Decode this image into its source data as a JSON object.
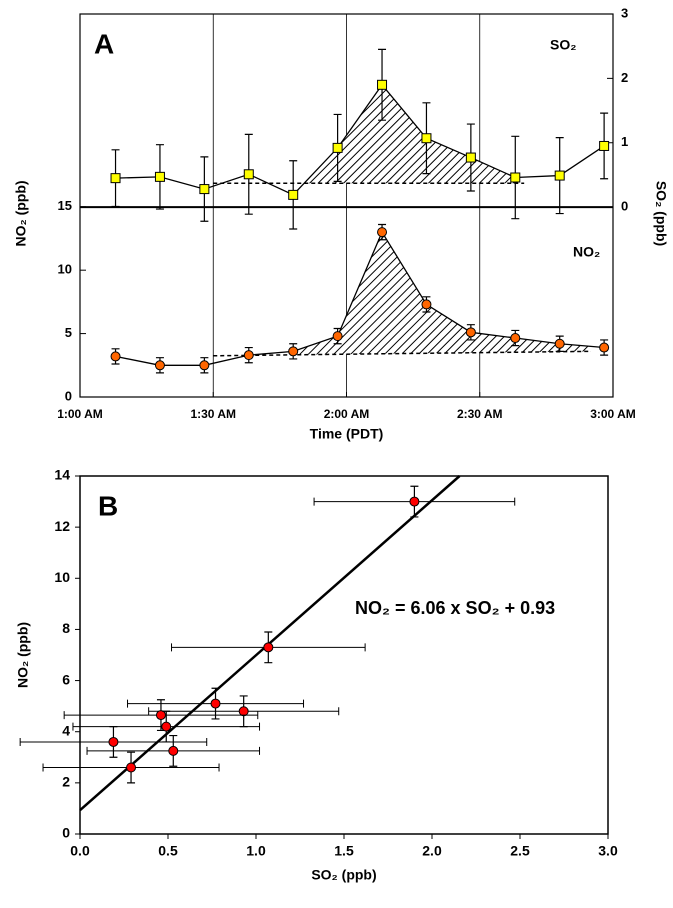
{
  "chart_data": [
    {
      "type": "line",
      "title": "A",
      "x": [
        68,
        78,
        88,
        98,
        108,
        118,
        128,
        138,
        148,
        158,
        168,
        178
      ],
      "xlim": [
        60,
        180
      ],
      "xticks": [
        {
          "value": 60,
          "label": "1:00 AM"
        },
        {
          "value": 90,
          "label": "1:30 AM"
        },
        {
          "value": 120,
          "label": "2:00 AM"
        },
        {
          "value": 150,
          "label": "2:30 AM"
        },
        {
          "value": 180,
          "label": "3:00 AM"
        }
      ],
      "xlabel": "Time (PDT)",
      "ylabel": "NO₂ (ppb)",
      "y2label": "SO₂ (ppb)",
      "ylim": [
        0,
        30.2
      ],
      "yticks": [
        0,
        5,
        10,
        15
      ],
      "y2lim": [
        -2.95,
        3
      ],
      "y2ticks": [
        0,
        1,
        2,
        3
      ],
      "grid": true,
      "series": [
        {
          "name": "SO₂",
          "axis": "y2",
          "color": "#ffff00",
          "marker": "square",
          "values": [
            0.45,
            0.47,
            0.28,
            0.51,
            0.19,
            0.92,
            1.9,
            1.07,
            0.77,
            0.46,
            0.49,
            0.95
          ],
          "errors": [
            0.44,
            0.5,
            0.5,
            0.62,
            0.53,
            0.52,
            0.55,
            0.55,
            0.52,
            0.64,
            0.59,
            0.51
          ],
          "baseline": {
            "x": [
              90,
              160
            ],
            "values": [
              0.37,
              0.37
            ]
          },
          "shaded": [
            111,
            159
          ]
        },
        {
          "name": "NO₂",
          "color": "#ff6600",
          "marker": "circle",
          "values": [
            3.2,
            2.5,
            2.5,
            3.3,
            3.6,
            4.8,
            13.0,
            7.3,
            5.1,
            4.65,
            4.2,
            3.9
          ],
          "errors": [
            0.6,
            0.6,
            0.6,
            0.6,
            0.6,
            0.6,
            0.6,
            0.6,
            0.6,
            0.6,
            0.6,
            0.6
          ],
          "baseline": {
            "x": [
              90,
              175
            ],
            "values": [
              3.25,
              3.6
            ]
          },
          "shaded": [
            109,
            175
          ]
        }
      ]
    },
    {
      "type": "scatter",
      "title": "B",
      "xlabel": "SO₂ (ppb)",
      "ylabel": "NO₂ (ppb)",
      "x": [
        1.9,
        1.07,
        0.77,
        0.93,
        0.46,
        0.49,
        0.19,
        0.53,
        0.29
      ],
      "values": [
        13.0,
        7.3,
        5.1,
        4.8,
        4.65,
        4.2,
        3.6,
        3.25,
        2.6
      ],
      "x_errors": [
        0.57,
        0.55,
        0.5,
        0.54,
        0.55,
        0.53,
        0.53,
        0.49,
        0.5
      ],
      "errors": [
        0.6,
        0.6,
        0.6,
        0.6,
        0.6,
        0.6,
        0.6,
        0.6,
        0.6
      ],
      "color": "#ff0000",
      "fit": {
        "slope": 6.06,
        "intercept": 0.93
      },
      "annotation": "NO₂ = 6.06 x SO₂ + 0.93",
      "xlim": [
        0,
        3
      ],
      "xticks": [
        {
          "value": 0,
          "label": "0.0"
        },
        0.5,
        {
          "value": 1,
          "label": "1.0"
        },
        1.5,
        {
          "value": 2,
          "label": "2.0"
        },
        2.5,
        {
          "value": 3,
          "label": "3.0"
        }
      ],
      "ylim": [
        0,
        14
      ],
      "yticks": [
        0,
        2,
        4,
        6,
        8,
        10,
        12,
        14
      ]
    }
  ]
}
